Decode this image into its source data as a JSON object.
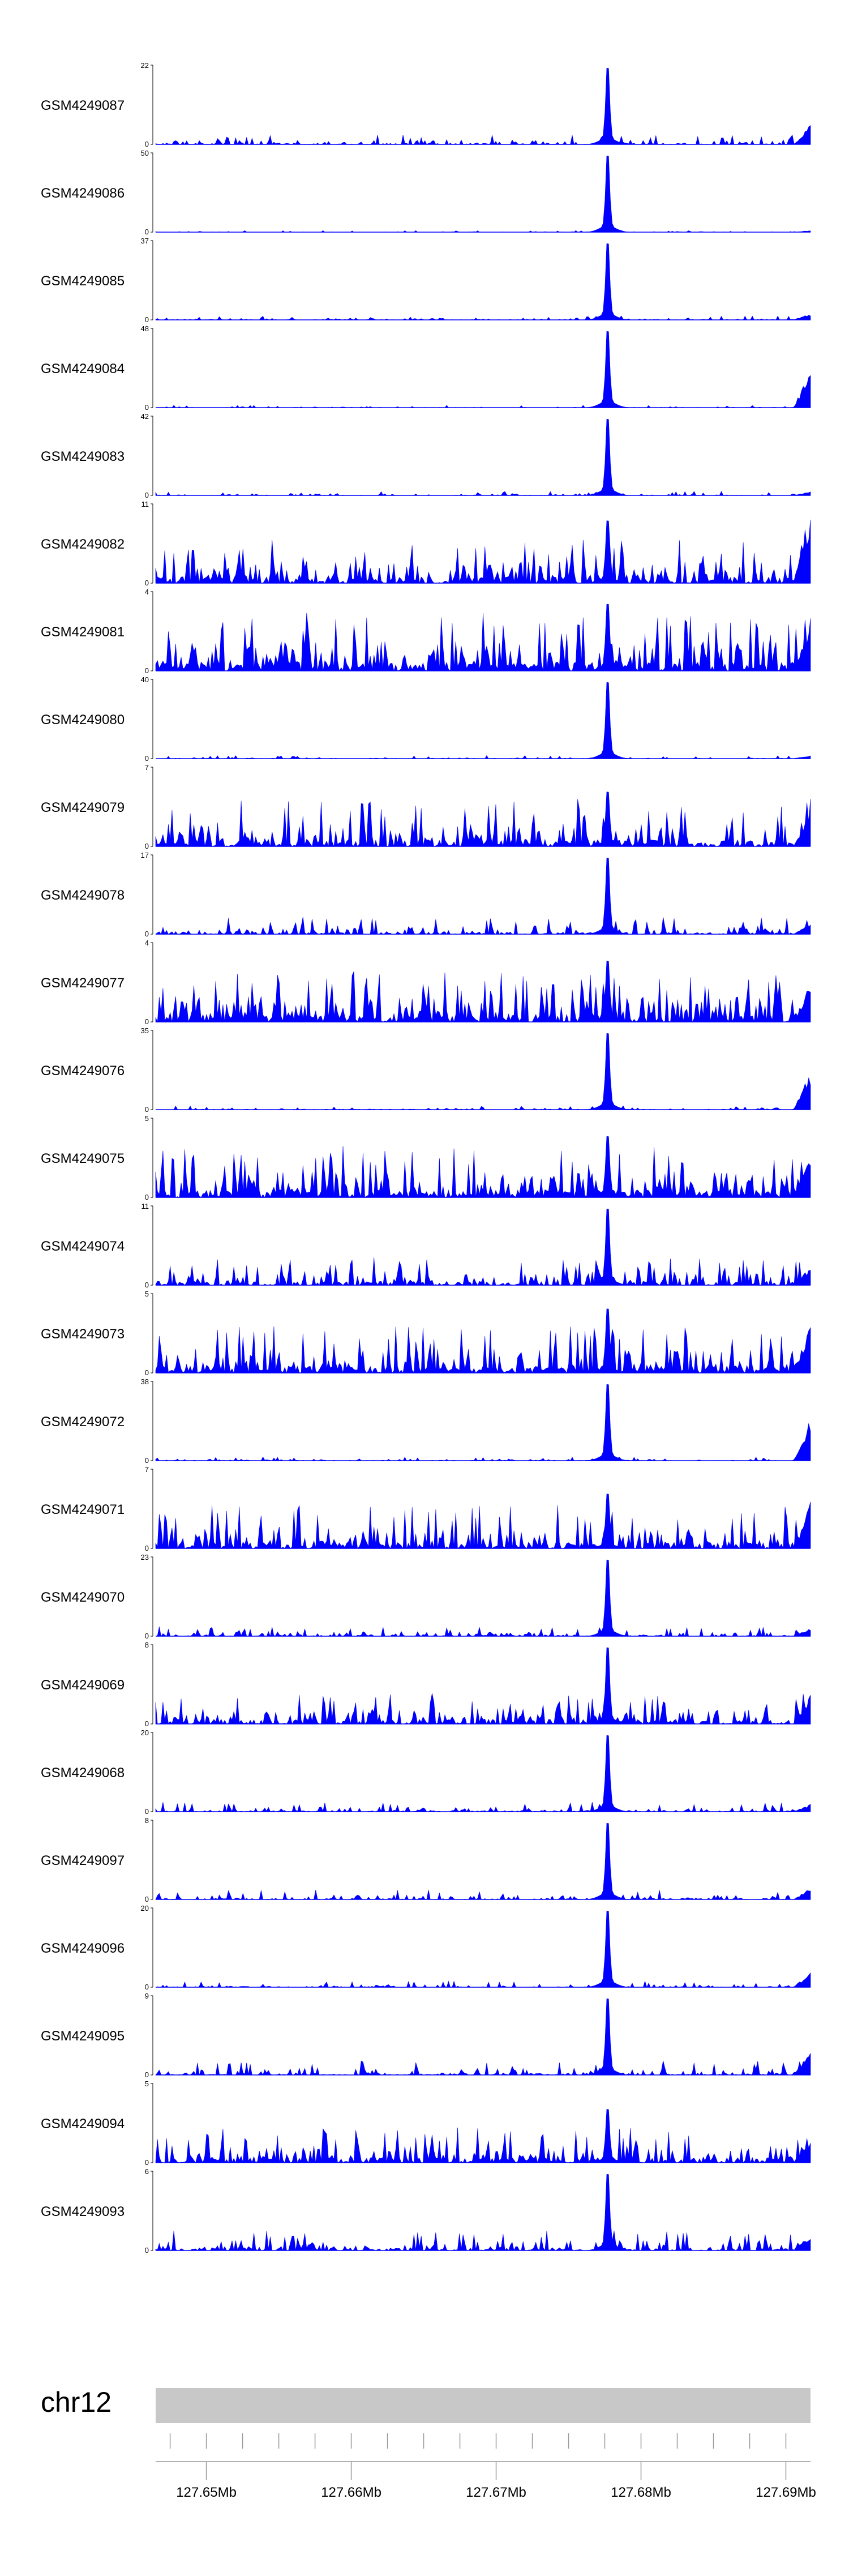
{
  "chart_data": {
    "type": "area",
    "title": "",
    "xlabel": "",
    "ylabel": "",
    "x_unit": "Mb",
    "xlim": [
      127.6465,
      127.6917
    ],
    "chromosome": "chr12",
    "x_ticks": [
      {
        "value": 127.65,
        "label": "127.65Mb"
      },
      {
        "value": 127.66,
        "label": "127.66Mb"
      },
      {
        "value": 127.67,
        "label": "127.67Mb"
      },
      {
        "value": 127.68,
        "label": "127.68Mb"
      },
      {
        "value": 127.69,
        "label": "127.69Mb"
      }
    ],
    "minor_tick_step": 0.0025,
    "peak_position": 127.6777,
    "series_color": "#0000ff",
    "ideogram_color": "#c8c8c8",
    "grid": false,
    "legend": "none",
    "tracks": [
      {
        "name": "GSM4249087",
        "ymax": "22",
        "ymin": "0",
        "ylim": [
          0,
          22
        ],
        "peak": 22,
        "noise": 0.12,
        "sparse": 0.35,
        "right_end": 0.25
      },
      {
        "name": "GSM4249086",
        "ymax": "50",
        "ymin": "0",
        "ylim": [
          0,
          50
        ],
        "peak": 50,
        "noise": 0.02,
        "sparse": 0.55,
        "right_end": 0.02
      },
      {
        "name": "GSM4249085",
        "ymax": "37",
        "ymin": "0",
        "ylim": [
          0,
          37
        ],
        "peak": 37,
        "noise": 0.05,
        "sparse": 0.45,
        "right_end": 0.08
      },
      {
        "name": "GSM4249084",
        "ymax": "48",
        "ymin": "0",
        "ylim": [
          0,
          48
        ],
        "peak": 48,
        "noise": 0.03,
        "sparse": 0.5,
        "right_end": 0.5
      },
      {
        "name": "GSM4249083",
        "ymax": "42",
        "ymin": "0",
        "ylim": [
          0,
          42
        ],
        "peak": 42,
        "noise": 0.05,
        "sparse": 0.45,
        "right_end": 0.05
      },
      {
        "name": "GSM4249082",
        "ymax": "11",
        "ymin": "0",
        "ylim": [
          0,
          11
        ],
        "peak": 9,
        "noise": 0.55,
        "sparse": 0.1,
        "right_end": 1.0
      },
      {
        "name": "GSM4249081",
        "ymax": "4",
        "ymin": "0",
        "ylim": [
          0,
          4
        ],
        "peak": 3.5,
        "noise": 0.75,
        "sparse": 0.02,
        "right_end": 0.7
      },
      {
        "name": "GSM4249080",
        "ymax": "40",
        "ymin": "0",
        "ylim": [
          0,
          40
        ],
        "peak": 40,
        "noise": 0.04,
        "sparse": 0.45,
        "right_end": 0.05
      },
      {
        "name": "GSM4249079",
        "ymax": "7",
        "ymin": "0",
        "ylim": [
          0,
          7
        ],
        "peak": 5,
        "noise": 0.6,
        "sparse": 0.12,
        "right_end": 0.4
      },
      {
        "name": "GSM4249078",
        "ymax": "17",
        "ymin": "0",
        "ylim": [
          0,
          17
        ],
        "peak": 17,
        "noise": 0.22,
        "sparse": 0.3,
        "right_end": 0.15
      },
      {
        "name": "GSM4249077",
        "ymax": "4",
        "ymin": "0",
        "ylim": [
          0,
          4
        ],
        "peak": 3.2,
        "noise": 0.65,
        "sparse": 0.05,
        "right_end": 0.5
      },
      {
        "name": "GSM4249076",
        "ymax": "35",
        "ymin": "0",
        "ylim": [
          0,
          35
        ],
        "peak": 35,
        "noise": 0.05,
        "sparse": 0.45,
        "right_end": 0.5
      },
      {
        "name": "GSM4249075",
        "ymax": "5",
        "ymin": "0",
        "ylim": [
          0,
          5
        ],
        "peak": 4,
        "noise": 0.65,
        "sparse": 0.05,
        "right_end": 0.5
      },
      {
        "name": "GSM4249074",
        "ymax": "11",
        "ymin": "0",
        "ylim": [
          0,
          11
        ],
        "peak": 11,
        "noise": 0.35,
        "sparse": 0.2,
        "right_end": 0.25
      },
      {
        "name": "GSM4249073",
        "ymax": "5",
        "ymin": "0",
        "ylim": [
          0,
          5
        ],
        "peak": 4.2,
        "noise": 0.6,
        "sparse": 0.06,
        "right_end": 0.6
      },
      {
        "name": "GSM4249072",
        "ymax": "38",
        "ymin": "0",
        "ylim": [
          0,
          38
        ],
        "peak": 38,
        "noise": 0.05,
        "sparse": 0.45,
        "right_end": 0.55
      },
      {
        "name": "GSM4249071",
        "ymax": "7",
        "ymin": "0",
        "ylim": [
          0,
          7
        ],
        "peak": 5,
        "noise": 0.55,
        "sparse": 0.12,
        "right_end": 0.6
      },
      {
        "name": "GSM4249070",
        "ymax": "23",
        "ymin": "0",
        "ylim": [
          0,
          23
        ],
        "peak": 23,
        "noise": 0.12,
        "sparse": 0.35,
        "right_end": 0.1
      },
      {
        "name": "GSM4249069",
        "ymax": "8",
        "ymin": "0",
        "ylim": [
          0,
          8
        ],
        "peak": 8,
        "noise": 0.4,
        "sparse": 0.15,
        "right_end": 0.4
      },
      {
        "name": "GSM4249068",
        "ymax": "20",
        "ymin": "0",
        "ylim": [
          0,
          20
        ],
        "peak": 20,
        "noise": 0.12,
        "sparse": 0.35,
        "right_end": 0.1
      },
      {
        "name": "GSM4249097",
        "ymax": "8",
        "ymin": "0",
        "ylim": [
          0,
          8
        ],
        "peak": 8,
        "noise": 0.12,
        "sparse": 0.4,
        "right_end": 0.15
      },
      {
        "name": "GSM4249096",
        "ymax": "20",
        "ymin": "0",
        "ylim": [
          0,
          20
        ],
        "peak": 20,
        "noise": 0.08,
        "sparse": 0.45,
        "right_end": 0.2
      },
      {
        "name": "GSM4249095",
        "ymax": "9",
        "ymin": "0",
        "ylim": [
          0,
          9
        ],
        "peak": 9,
        "noise": 0.18,
        "sparse": 0.3,
        "right_end": 0.3
      },
      {
        "name": "GSM4249094",
        "ymax": "5",
        "ymin": "0",
        "ylim": [
          0,
          5
        ],
        "peak": 3.5,
        "noise": 0.45,
        "sparse": 0.12,
        "right_end": 0.35
      },
      {
        "name": "GSM4249093",
        "ymax": "6",
        "ymin": "0",
        "ylim": [
          0,
          6
        ],
        "peak": 6,
        "noise": 0.25,
        "sparse": 0.25,
        "right_end": 0.2
      }
    ]
  }
}
